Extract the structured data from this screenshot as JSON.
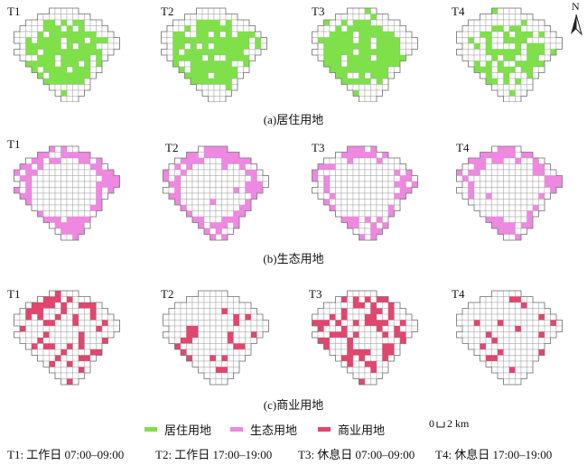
{
  "rows": [
    {
      "caption": "(a)居住用地",
      "color": "#7fe04a",
      "panels": [
        {
          "label": "T1",
          "density": 0.78
        },
        {
          "label": "T2",
          "density": 0.8
        },
        {
          "label": "T3",
          "density": 0.84
        },
        {
          "label": "T4",
          "density": 0.55
        }
      ]
    },
    {
      "caption": "(b)生态用地",
      "color": "#ee88e0",
      "panels": [
        {
          "label": "T1",
          "density": 0.7
        },
        {
          "label": "T2",
          "density": 0.68
        },
        {
          "label": "T3",
          "density": 0.55
        },
        {
          "label": "T4",
          "density": 0.6
        }
      ]
    },
    {
      "caption": "(c)商业用地",
      "color": "#e0466e",
      "panels": [
        {
          "label": "T1",
          "density": 0.35
        },
        {
          "label": "T2",
          "density": 0.12
        },
        {
          "label": "T3",
          "density": 0.4
        },
        {
          "label": "T4",
          "density": 0.12
        }
      ]
    }
  ],
  "legend": [
    {
      "label": "居住用地",
      "color": "#7fe04a"
    },
    {
      "label": "生态用地",
      "color": "#ee88e0"
    },
    {
      "label": "商业用地",
      "color": "#e0466e"
    }
  ],
  "scale": {
    "zero": "0",
    "value": "2 km"
  },
  "north": "N",
  "times": [
    "T1: 工作日 07:00–09:00",
    "T2: 工作日 17:00–19:00",
    "T3: 休息日 07:00–09:00",
    "T4: 休息日 17:00–19:00"
  ]
}
